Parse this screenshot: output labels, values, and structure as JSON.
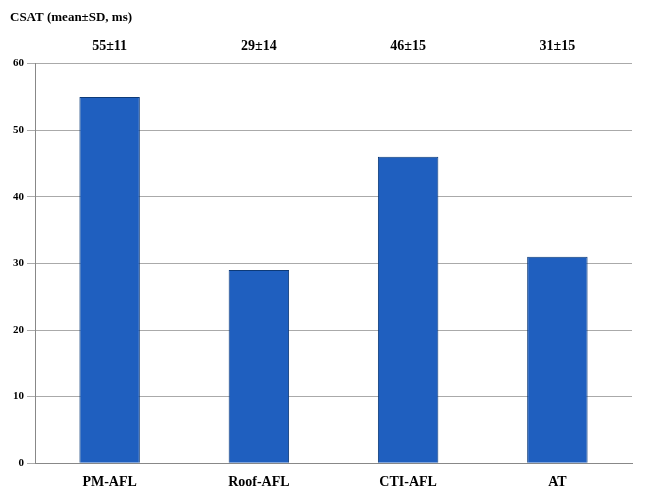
{
  "chart_data": {
    "type": "bar",
    "title": "CSAT (mean±SD, ms)",
    "categories": [
      "PM-AFL",
      "Roof-AFL",
      "CTI-AFL",
      "AT"
    ],
    "values": [
      55,
      29,
      46,
      31
    ],
    "value_labels": [
      "55±11",
      "29±14",
      "46±15",
      "31±15"
    ],
    "data_labels": true,
    "color": "#1f5fbf",
    "ylim": [
      0,
      60
    ],
    "yticks": [
      0,
      10,
      20,
      30,
      40,
      50,
      60
    ],
    "grid": true
  }
}
